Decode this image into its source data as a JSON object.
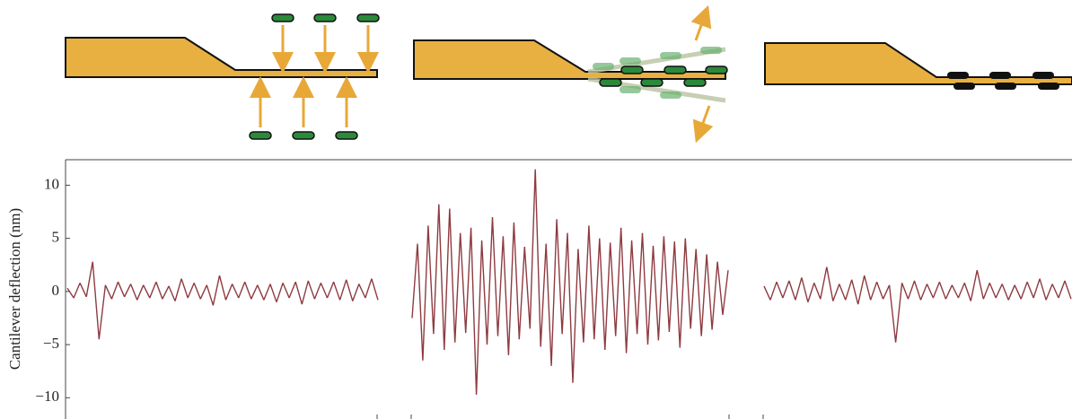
{
  "chart_data": {
    "type": "line",
    "y_label": "Cantilever deflection (nm)",
    "ylim": [
      -12,
      12.4
    ],
    "yticks": [
      {
        "value": -10,
        "label": "−10"
      },
      {
        "value": -5,
        "label": "−5"
      },
      0,
      5,
      10
    ],
    "series": [
      {
        "color": "#8e3b40",
        "values": [
          0.3,
          -0.6,
          0.8,
          -0.5,
          2.8,
          -4.5,
          0.6,
          -0.7,
          0.9,
          -0.5,
          0.7,
          -0.8,
          0.6,
          -0.6,
          0.9,
          -0.7,
          0.5,
          -0.9,
          1.2,
          -0.6,
          0.8,
          -0.7,
          0.6,
          -1.3,
          1.5,
          -0.8,
          0.7,
          -0.6,
          0.9,
          -0.7,
          0.6,
          -0.8,
          0.7,
          -1.0,
          0.8,
          -0.6,
          0.9,
          -1.2,
          1.0,
          -0.7,
          0.8,
          -0.6,
          0.9,
          -0.8,
          1.1,
          -0.9,
          0.7,
          -0.6,
          1.2,
          -0.8
        ]
      },
      {
        "color": "#8e3b40",
        "values": [
          -2.5,
          4.5,
          -6.5,
          6.2,
          -4.0,
          8.2,
          -5.5,
          7.8,
          -4.8,
          5.5,
          -3.9,
          6.0,
          -9.7,
          4.8,
          -5.0,
          7.0,
          -4.2,
          5.2,
          -6.0,
          6.5,
          -4.5,
          4.2,
          -3.5,
          11.5,
          -5.2,
          4.5,
          -7.0,
          6.8,
          -4.0,
          5.5,
          -8.6,
          4.0,
          -4.8,
          6.2,
          -4.5,
          5.0,
          -5.5,
          4.6,
          -4.2,
          6.0,
          -5.8,
          4.8,
          -4.0,
          5.5,
          -5.0,
          4.3,
          -4.6,
          5.2,
          -3.8,
          4.7,
          -5.3,
          5.0,
          -3.5,
          4.0,
          -4.2,
          3.5,
          -3.6,
          2.8,
          -2.2,
          2.0
        ]
      },
      {
        "color": "#8e3b40",
        "values": [
          0.5,
          -0.8,
          0.9,
          -0.6,
          1.0,
          -0.8,
          1.3,
          -1.0,
          0.8,
          -0.7,
          2.3,
          -0.9,
          0.7,
          -0.8,
          1.1,
          -1.2,
          1.5,
          -0.8,
          0.9,
          -0.7,
          0.6,
          -4.8,
          0.8,
          -0.7,
          1.0,
          -0.8,
          0.7,
          -0.6,
          0.9,
          -0.7,
          0.6,
          -0.6,
          0.8,
          -0.9,
          2.0,
          -0.7,
          0.8,
          -0.6,
          0.7,
          -0.8,
          0.6,
          -0.7,
          0.9,
          -0.6,
          1.2,
          -0.8,
          0.7,
          -0.6,
          1.0,
          -0.7
        ]
      }
    ]
  }
}
